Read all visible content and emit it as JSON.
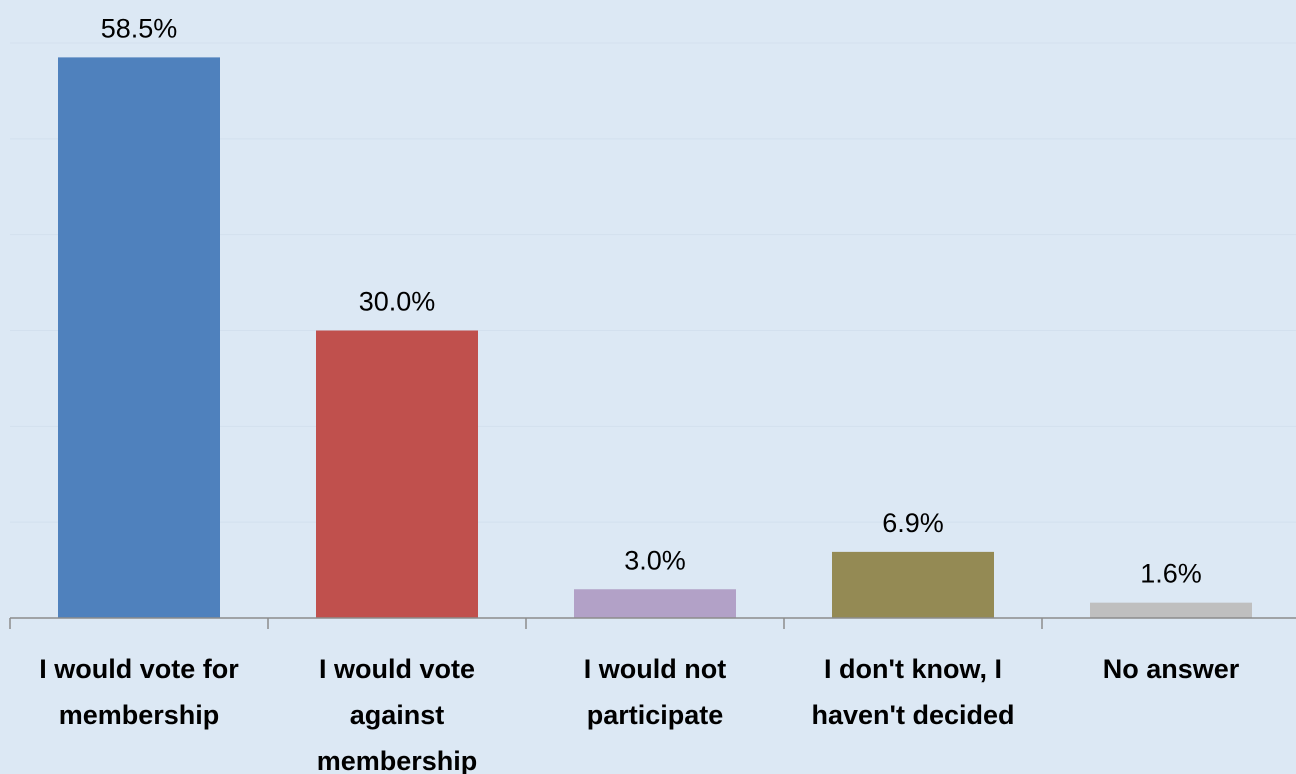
{
  "chart_data": {
    "type": "bar",
    "categories": [
      [
        "I would vote for",
        "membership"
      ],
      [
        "I would vote",
        "against",
        "membership"
      ],
      [
        "I would not",
        "participate"
      ],
      [
        "I don't know, I",
        "haven't decided"
      ],
      [
        "No answer"
      ]
    ],
    "values": [
      58.5,
      30.0,
      3.0,
      6.9,
      1.6
    ],
    "value_labels": [
      "58.5%",
      "30.0%",
      "3.0%",
      "6.9%",
      "1.6%"
    ],
    "colors": [
      "#4f81bd",
      "#c0504d",
      "#b2a1c7",
      "#948a54",
      "#bfbfbf"
    ],
    "ylim": [
      0,
      60
    ],
    "grid": true,
    "background": "#dce8f4",
    "gridline_color": "#d3e0ee"
  }
}
